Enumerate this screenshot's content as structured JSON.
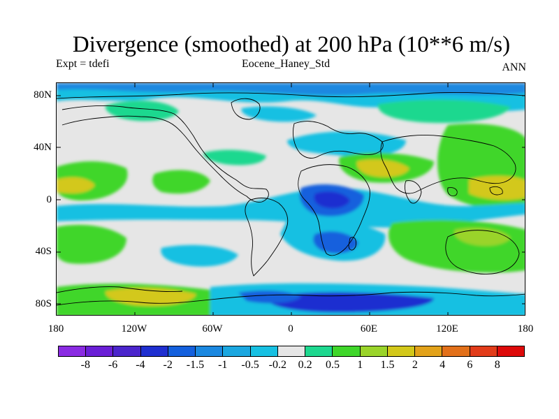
{
  "title": "Divergence (smoothed) at 200 hPa (10**6 m/s)",
  "subtitle_left": "Expt = tdefi",
  "subtitle_center": "Eocene_Haney_Std",
  "subtitle_right": "ANN",
  "lat_labels": [
    "80N",
    "40N",
    "0",
    "40S",
    "80S"
  ],
  "lon_labels": [
    "180",
    "120W",
    "60W",
    "0",
    "60E",
    "120E",
    "180"
  ],
  "colorbar": {
    "labels": [
      "-8",
      "-6",
      "-4",
      "-2",
      "-1.5",
      "-1",
      "-0.5",
      "-0.2",
      "0.2",
      "0.5",
      "1",
      "1.5",
      "2",
      "4",
      "6",
      "8"
    ],
    "colors": [
      "#8a2be2",
      "#6a1fd6",
      "#4b25cc",
      "#1f2fd0",
      "#1460dd",
      "#1b88e0",
      "#1ba7e0",
      "#17c0e2",
      "#e6e6e6",
      "#1ed88f",
      "#3fd62a",
      "#9ad42a",
      "#d3c81a",
      "#e2a21a",
      "#e2701a",
      "#e23c1a",
      "#dd0a0a"
    ]
  },
  "colors": {
    "background": "#e6e6e6",
    "neutral": "#e6e6e6",
    "coast": "#000000"
  }
}
